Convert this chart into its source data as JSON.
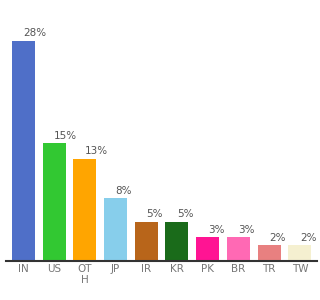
{
  "categories": [
    "IN",
    "US",
    "OTH",
    "JP",
    "IR",
    "KR",
    "PK",
    "BR",
    "TR",
    "TW"
  ],
  "values": [
    28,
    15,
    13,
    8,
    5,
    5,
    3,
    3,
    2,
    2
  ],
  "bar_colors": [
    "#4f6fc8",
    "#32c832",
    "#ffa500",
    "#87ceeb",
    "#b8651a",
    "#1a6b1a",
    "#ff1493",
    "#ff69b4",
    "#e88080",
    "#f5f0d0"
  ],
  "ylim": [
    0,
    32
  ],
  "bar_width": 0.75,
  "label_fontsize": 7.5,
  "tick_fontsize": 7.5,
  "background_color": "#ffffff",
  "label_color": "#555555",
  "tick_color": "#777777"
}
